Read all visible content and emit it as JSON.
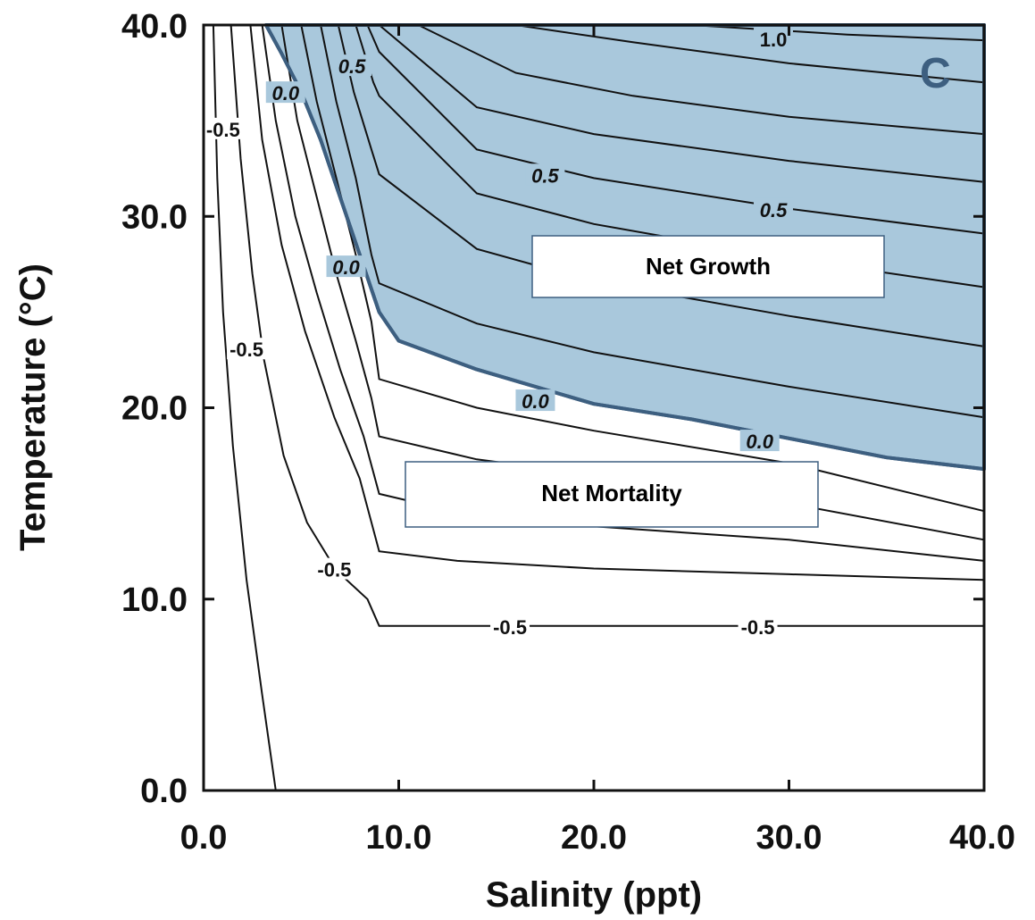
{
  "chart_data": {
    "type": "contour",
    "panel_label": "C",
    "xlabel": "Salinity (ppt)",
    "ylabel": "Temperature (°C)",
    "xlim": [
      0,
      40
    ],
    "ylim": [
      0,
      40
    ],
    "x_ticks": [
      "0.0",
      "10.0",
      "20.0",
      "30.0",
      "40.0"
    ],
    "y_ticks": [
      "0.0",
      "10.0",
      "20.0",
      "30.0",
      "40.0"
    ],
    "regions": [
      {
        "label": "Net Growth",
        "color": "#a9c8dc",
        "border": "#3d5f80",
        "boundary": [
          [
            3.2,
            40
          ],
          [
            4,
            38.5
          ],
          [
            5,
            36.5
          ],
          [
            6,
            34
          ],
          [
            7,
            31
          ],
          [
            8,
            28
          ],
          [
            9,
            25
          ],
          [
            10,
            23.5
          ],
          [
            14,
            22
          ],
          [
            20,
            20.2
          ],
          [
            25,
            19.4
          ],
          [
            30,
            18.4
          ],
          [
            35,
            17.4
          ],
          [
            40,
            16.8
          ],
          [
            40,
            40
          ]
        ]
      },
      {
        "label": "Net Mortality"
      }
    ],
    "contour_labels": [
      {
        "text": "1.0",
        "x": 29.2,
        "y": 39.2
      },
      {
        "text": "0.5",
        "x": 17.5,
        "y": 32.1
      },
      {
        "text": "0.5",
        "x": 29.2,
        "y": 30.3
      },
      {
        "text": "0.5",
        "x": 7.6,
        "y": 37.8
      },
      {
        "text": "0.0",
        "x": 4.2,
        "y": 36.4
      },
      {
        "text": "0.0",
        "x": 7.3,
        "y": 27.3
      },
      {
        "text": "0.0",
        "x": 17.0,
        "y": 20.3
      },
      {
        "text": "0.0",
        "x": 28.5,
        "y": 18.2
      },
      {
        "text": "-0.5",
        "x": 1.0,
        "y": 34.5
      },
      {
        "text": "-0.5",
        "x": 2.2,
        "y": 23.0
      },
      {
        "text": "-0.5",
        "x": 6.7,
        "y": 11.5
      },
      {
        "text": "-0.5",
        "x": 15.7,
        "y": 8.5
      },
      {
        "text": "-0.5",
        "x": 28.4,
        "y": 8.5
      }
    ],
    "contours": [
      [
        [
          3.7,
          0
        ],
        [
          3,
          5
        ],
        [
          2.2,
          11
        ],
        [
          1.5,
          18
        ],
        [
          1.0,
          25
        ],
        [
          0.7,
          32
        ],
        [
          0.5,
          40
        ]
      ],
      [
        [
          1.4,
          40
        ],
        [
          1.9,
          33
        ],
        [
          2.5,
          27
        ],
        [
          3.1,
          22.5
        ],
        [
          4.1,
          17.5
        ],
        [
          5.3,
          14
        ],
        [
          6.8,
          11.5
        ],
        [
          8.4,
          10
        ],
        [
          9,
          8.6
        ],
        [
          40,
          8.6
        ]
      ],
      [
        [
          2.4,
          40
        ],
        [
          3,
          34
        ],
        [
          4,
          28.5
        ],
        [
          5.2,
          24
        ],
        [
          6.7,
          19.5
        ],
        [
          8,
          16.3
        ],
        [
          9,
          12.5
        ],
        [
          13,
          12
        ],
        [
          20,
          11.6
        ],
        [
          30,
          11.3
        ],
        [
          40,
          11
        ]
      ],
      [
        [
          3.0,
          40
        ],
        [
          3.7,
          35
        ],
        [
          4.7,
          30
        ],
        [
          5.8,
          26
        ],
        [
          7,
          22
        ],
        [
          8.2,
          18.5
        ],
        [
          9,
          15.5
        ],
        [
          14,
          14.3
        ],
        [
          20,
          13.8
        ],
        [
          30,
          13.1
        ],
        [
          40,
          12
        ]
      ],
      [
        [
          4.0,
          40
        ],
        [
          4.8,
          35
        ],
        [
          5.8,
          31
        ],
        [
          6.8,
          27
        ],
        [
          7.8,
          23.5
        ],
        [
          8.6,
          20.5
        ],
        [
          9,
          18.5
        ],
        [
          14,
          17.3
        ],
        [
          20,
          16.5
        ],
        [
          30,
          15
        ],
        [
          40,
          13.1
        ]
      ],
      [
        [
          5.0,
          40
        ],
        [
          5.8,
          36
        ],
        [
          6.8,
          32
        ],
        [
          7.8,
          28
        ],
        [
          8.6,
          24.5
        ],
        [
          9,
          21.5
        ],
        [
          14,
          20
        ],
        [
          20,
          18.8
        ],
        [
          30,
          17.1
        ],
        [
          40,
          14.6
        ]
      ],
      [
        [
          6.0,
          40
        ],
        [
          6.8,
          36
        ],
        [
          7.8,
          32
        ],
        [
          8.6,
          28
        ],
        [
          9,
          26.5
        ],
        [
          14,
          24.4
        ],
        [
          20,
          22.9
        ],
        [
          30,
          21.1
        ],
        [
          40,
          19.5
        ]
      ],
      [
        [
          6.9,
          40
        ],
        [
          7.7,
          36.5
        ],
        [
          8.6,
          33.5
        ],
        [
          9,
          32.2
        ],
        [
          14,
          28.3
        ],
        [
          20,
          26.6
        ],
        [
          30,
          24.8
        ],
        [
          40,
          23.2
        ]
      ],
      [
        [
          7.8,
          40
        ],
        [
          8.7,
          37
        ],
        [
          9,
          36.3
        ],
        [
          14,
          31.2
        ],
        [
          20,
          29.6
        ],
        [
          30,
          27.8
        ],
        [
          40,
          26.3
        ]
      ],
      [
        [
          8.4,
          40
        ],
        [
          9,
          38.6
        ],
        [
          14,
          33.5
        ],
        [
          20,
          32
        ],
        [
          30,
          30.4
        ],
        [
          40,
          29.1
        ]
      ],
      [
        [
          9.0,
          40
        ],
        [
          14,
          35.7
        ],
        [
          20,
          34.3
        ],
        [
          30,
          32.9
        ],
        [
          40,
          31.8
        ]
      ],
      [
        [
          11,
          40
        ],
        [
          16,
          37.5
        ],
        [
          22,
          36.3
        ],
        [
          30,
          35.2
        ],
        [
          40,
          34.3
        ]
      ],
      [
        [
          16,
          40
        ],
        [
          22,
          39.1
        ],
        [
          30,
          38
        ],
        [
          40,
          37
        ]
      ],
      [
        [
          25,
          40
        ],
        [
          33,
          39.5
        ],
        [
          40,
          39.2
        ]
      ]
    ]
  }
}
